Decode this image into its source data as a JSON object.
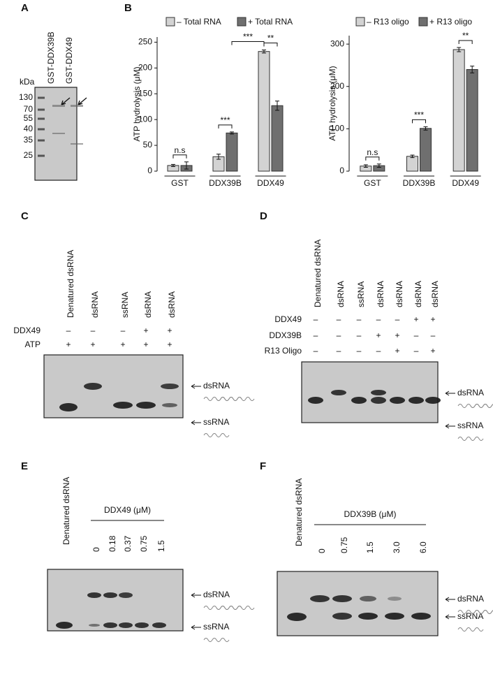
{
  "chart_data": [
    {
      "type": "bar",
      "ylabel": "ATP hydrolysis (μM)",
      "categories": [
        "GST",
        "DDX39B",
        "DDX49"
      ],
      "series": [
        {
          "name": "– Total RNA",
          "color": "#d3d3d3",
          "values": [
            11,
            28,
            232
          ],
          "errors": [
            2,
            5,
            3
          ]
        },
        {
          "name": "+ Total RNA",
          "color": "#6f6f6f",
          "values": [
            11,
            74,
            127
          ],
          "errors": [
            7,
            2,
            9
          ]
        }
      ],
      "ylim": [
        0,
        260
      ],
      "yticks": [
        0,
        50,
        100,
        150,
        200,
        250
      ],
      "annotations": [
        "n.s",
        "***",
        "**",
        "***"
      ]
    },
    {
      "type": "bar",
      "ylabel": "ATP hydrolysis (μM)",
      "categories": [
        "GST",
        "DDX39B",
        "DDX49"
      ],
      "series": [
        {
          "name": "– R13 oligo",
          "color": "#d3d3d3",
          "values": [
            12,
            35,
            287
          ],
          "errors": [
            3,
            3,
            5
          ]
        },
        {
          "name": "+ R13 oligo",
          "color": "#6f6f6f",
          "values": [
            13,
            101,
            240
          ],
          "errors": [
            4,
            4,
            8
          ]
        }
      ],
      "ylim": [
        0,
        320
      ],
      "yticks": [
        0,
        100,
        200,
        300
      ],
      "annotations": [
        "n.s",
        "***",
        "**"
      ]
    }
  ],
  "panels": {
    "A": {
      "label": "A",
      "unit": "kDa",
      "markers": [
        "130",
        "70",
        "55",
        "40",
        "35",
        "25"
      ],
      "lanes": [
        "GST-DDX39B",
        "GST-DDX49"
      ]
    },
    "B": {
      "label": "B"
    },
    "C": {
      "label": "C",
      "lanes": [
        "Denatured dsRNA",
        "dsRNA",
        "ssRNA",
        "dsRNA",
        "dsRNA"
      ],
      "rows": [
        {
          "name": "DDX49",
          "signs": [
            "–",
            "–",
            "–",
            "+",
            "+"
          ]
        },
        {
          "name": "ATP",
          "signs": [
            "+",
            "+",
            "+",
            "+",
            "+"
          ]
        }
      ],
      "bands": [
        "dsRNA",
        "ssRNA"
      ]
    },
    "D": {
      "label": "D",
      "lanes": [
        "Denatured dsRNA",
        "dsRNA",
        "ssRNA",
        "dsRNA",
        "dsRNA",
        "dsRNA",
        "dsRNA"
      ],
      "rows": [
        {
          "name": "DDX49",
          "signs": [
            "–",
            "–",
            "–",
            "–",
            "–",
            "+",
            "+"
          ]
        },
        {
          "name": "DDX39B",
          "signs": [
            "–",
            "–",
            "–",
            "+",
            "+",
            "–",
            "–"
          ]
        },
        {
          "name": "R13 Oligo",
          "signs": [
            "–",
            "–",
            "–",
            "–",
            "+",
            "–",
            "+"
          ]
        }
      ],
      "bands": [
        "dsRNA",
        "ssRNA"
      ]
    },
    "E": {
      "label": "E",
      "lanes": [
        "Denatured dsRNA"
      ],
      "group": "DDX49 (μM)",
      "concentrations": [
        "0",
        "0.18",
        "0.37",
        "0.75",
        "1.5"
      ],
      "bands": [
        "dsRNA",
        "ssRNA"
      ]
    },
    "F": {
      "label": "F",
      "lanes": [
        "Denatured dsRNA"
      ],
      "group": "DDX39B (μM)",
      "concentrations": [
        "0",
        "0.75",
        "1.5",
        "3.0",
        "6.0"
      ],
      "bands": [
        "dsRNA",
        "ssRNA"
      ]
    }
  }
}
